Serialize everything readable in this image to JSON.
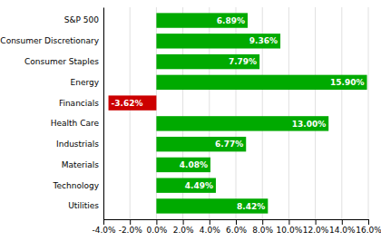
{
  "chart_data": {
    "type": "bar",
    "orientation": "horizontal",
    "categories": [
      "S&P 500",
      "Consumer Discretionary",
      "Consumer Staples",
      "Energy",
      "Financials",
      "Health Care",
      "Industrials",
      "Materials",
      "Technology",
      "Utilities"
    ],
    "values": [
      6.89,
      9.36,
      7.79,
      15.9,
      -3.62,
      13.0,
      6.77,
      4.08,
      4.49,
      8.42
    ],
    "value_labels": [
      "6.89%",
      "9.36%",
      "7.79%",
      "15.90%",
      "-3.62%",
      "13.00%",
      "6.77%",
      "4.08%",
      "4.49%",
      "8.42%"
    ],
    "colors": [
      "#00aa00",
      "#00aa00",
      "#00aa00",
      "#00aa00",
      "#cc0000",
      "#00aa00",
      "#00aa00",
      "#00aa00",
      "#00aa00",
      "#00aa00"
    ],
    "xlim": [
      -4.0,
      16.0
    ],
    "xticks": [
      {
        "value": -4.0,
        "label": "-4.0%"
      },
      {
        "value": -2.0,
        "label": "-2.0%"
      },
      {
        "value": 0.0,
        "label": "0.0%"
      },
      {
        "value": 2.0,
        "label": "2.0%"
      },
      {
        "value": 4.0,
        "label": "4.0%"
      },
      {
        "value": 6.0,
        "label": "6.0%"
      },
      {
        "value": 8.0,
        "label": "8.0%"
      },
      {
        "value": 10.0,
        "label": "10.0%"
      },
      {
        "value": 12.0,
        "label": "12.0%"
      },
      {
        "value": 14.0,
        "label": "14.0%"
      },
      {
        "value": 16.0,
        "label": "16.0%"
      }
    ],
    "grid": true,
    "data_labels": true
  }
}
